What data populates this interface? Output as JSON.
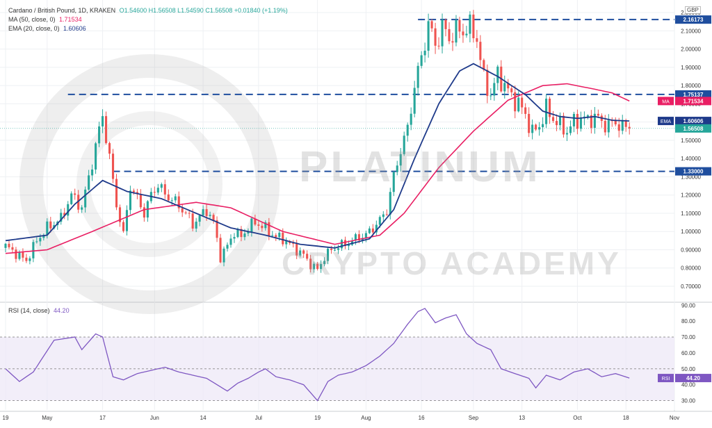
{
  "legend": {
    "symbol": "Cardano / British Pound, 1D, KRAKEN",
    "ohlc": "O1.54600  H1.56508  L1.54590  C1.56508  +0.01840 (+1.19%)",
    "ma_label": "MA (50, close, 0)",
    "ma_value": "1.71534",
    "ema_label": "EMA (20, close, 0)",
    "ema_value": "1.60606",
    "rsi_label": "RSI (14, close)",
    "rsi_value": "44.20"
  },
  "currency": "GBP",
  "watermark": {
    "line1": "PLATINUM",
    "line2": "CRYPTO ACADEMY"
  },
  "colors": {
    "up": "#26a69a",
    "down": "#ef5350",
    "ma": "#e91e63",
    "ema": "#1e3a8a",
    "rsi": "#7e57c2",
    "level": "#1f4e9e",
    "grid": "#eef0f3"
  },
  "chart_data": {
    "type": "candlestick",
    "x_tick_labels": [
      "19",
      "May",
      "17",
      "Jun",
      "14",
      "Jul",
      "19",
      "Aug",
      "16",
      "Sep",
      "13",
      "Oct",
      "18",
      "Nov"
    ],
    "x_tick_index": [
      0,
      12,
      28,
      43,
      57,
      73,
      90,
      104,
      120,
      135,
      149,
      165,
      179,
      193
    ],
    "price_axis_labels": [
      "0.70000",
      "0.80000",
      "0.90000",
      "1.00000",
      "1.10000",
      "1.20000",
      "1.30000",
      "1.40000",
      "1.50000",
      "1.60000",
      "1.70000",
      "1.80000",
      "1.90000",
      "2.00000",
      "2.10000",
      "2.20000"
    ],
    "price_ylim": [
      0.62,
      2.25
    ],
    "levels": [
      {
        "label": "2.16173",
        "value": 2.16173,
        "start_index": 119
      },
      {
        "label": "1.75137",
        "value": 1.75137,
        "start_index": 18
      },
      {
        "label": "1.33000",
        "value": 1.33,
        "start_index": 31
      }
    ],
    "last_price": {
      "label": "1.56508",
      "value": 1.56508
    },
    "ma_badge": {
      "text": "MA",
      "label": "1.71534",
      "value": 1.71534
    },
    "ema_badge": {
      "text": "EMA",
      "label": "1.60606",
      "value": 1.60606
    },
    "close_keypoints": [
      [
        0,
        0.92
      ],
      [
        3,
        0.88
      ],
      [
        6,
        0.84
      ],
      [
        9,
        0.95
      ],
      [
        12,
        1.02
      ],
      [
        16,
        1.07
      ],
      [
        19,
        1.2
      ],
      [
        22,
        1.13
      ],
      [
        25,
        1.38
      ],
      [
        28,
        1.64
      ],
      [
        30,
        1.4
      ],
      [
        32,
        1.15
      ],
      [
        34,
        0.98
      ],
      [
        36,
        1.25
      ],
      [
        38,
        1.18
      ],
      [
        40,
        1.1
      ],
      [
        42,
        1.2
      ],
      [
        44,
        1.26
      ],
      [
        46,
        1.2
      ],
      [
        48,
        1.18
      ],
      [
        50,
        1.14
      ],
      [
        52,
        1.1
      ],
      [
        54,
        1.04
      ],
      [
        56,
        1.08
      ],
      [
        58,
        1.12
      ],
      [
        60,
        1.05
      ],
      [
        62,
        0.86
      ],
      [
        64,
        0.92
      ],
      [
        66,
        1.0
      ],
      [
        68,
        0.97
      ],
      [
        70,
        1.02
      ],
      [
        72,
        1.05
      ],
      [
        74,
        1.03
      ],
      [
        76,
        1.0
      ],
      [
        78,
        0.97
      ],
      [
        80,
        0.96
      ],
      [
        82,
        0.93
      ],
      [
        84,
        0.9
      ],
      [
        86,
        0.87
      ],
      [
        88,
        0.82
      ],
      [
        90,
        0.79
      ],
      [
        92,
        0.86
      ],
      [
        94,
        0.9
      ],
      [
        96,
        0.92
      ],
      [
        98,
        0.93
      ],
      [
        100,
        0.95
      ],
      [
        102,
        0.97
      ],
      [
        104,
        0.98
      ],
      [
        106,
        1.02
      ],
      [
        108,
        1.06
      ],
      [
        110,
        1.12
      ],
      [
        112,
        1.3
      ],
      [
        114,
        1.45
      ],
      [
        116,
        1.56
      ],
      [
        118,
        1.8
      ],
      [
        120,
        1.95
      ],
      [
        122,
        2.14
      ],
      [
        124,
        2.02
      ],
      [
        126,
        2.12
      ],
      [
        128,
        2.06
      ],
      [
        130,
        2.1
      ],
      [
        132,
        2.1
      ],
      [
        134,
        2.12
      ],
      [
        136,
        2.06
      ],
      [
        138,
        1.83
      ],
      [
        140,
        1.75
      ],
      [
        142,
        1.86
      ],
      [
        144,
        1.8
      ],
      [
        146,
        1.74
      ],
      [
        148,
        1.7
      ],
      [
        150,
        1.64
      ],
      [
        152,
        1.54
      ],
      [
        154,
        1.58
      ],
      [
        156,
        1.67
      ],
      [
        158,
        1.62
      ],
      [
        160,
        1.58
      ],
      [
        162,
        1.55
      ],
      [
        164,
        1.6
      ],
      [
        166,
        1.62
      ],
      [
        168,
        1.61
      ],
      [
        170,
        1.63
      ],
      [
        172,
        1.6
      ],
      [
        174,
        1.58
      ],
      [
        176,
        1.6
      ],
      [
        178,
        1.57
      ],
      [
        180,
        1.56508
      ]
    ],
    "ma_keypoints": [
      [
        0,
        0.88
      ],
      [
        12,
        0.9
      ],
      [
        25,
        1.0
      ],
      [
        40,
        1.12
      ],
      [
        55,
        1.16
      ],
      [
        65,
        1.13
      ],
      [
        80,
        1.0
      ],
      [
        95,
        0.93
      ],
      [
        108,
        0.98
      ],
      [
        115,
        1.1
      ],
      [
        125,
        1.35
      ],
      [
        135,
        1.55
      ],
      [
        145,
        1.72
      ],
      [
        155,
        1.8
      ],
      [
        162,
        1.81
      ],
      [
        170,
        1.78
      ],
      [
        175,
        1.76
      ],
      [
        180,
        1.71534
      ]
    ],
    "ema_keypoints": [
      [
        0,
        0.95
      ],
      [
        12,
        0.98
      ],
      [
        20,
        1.15
      ],
      [
        28,
        1.28
      ],
      [
        35,
        1.22
      ],
      [
        45,
        1.18
      ],
      [
        55,
        1.1
      ],
      [
        65,
        1.02
      ],
      [
        75,
        0.98
      ],
      [
        85,
        0.93
      ],
      [
        95,
        0.91
      ],
      [
        105,
        0.96
      ],
      [
        112,
        1.12
      ],
      [
        118,
        1.4
      ],
      [
        125,
        1.7
      ],
      [
        131,
        1.88
      ],
      [
        135,
        1.92
      ],
      [
        142,
        1.85
      ],
      [
        150,
        1.75
      ],
      [
        155,
        1.66
      ],
      [
        160,
        1.63
      ],
      [
        165,
        1.62
      ],
      [
        170,
        1.63
      ],
      [
        175,
        1.61
      ],
      [
        180,
        1.60606
      ]
    ],
    "rsi_axis_labels": [
      "30.00",
      "40.00",
      "50.00",
      "60.00",
      "70.00",
      "80.00",
      "90.00"
    ],
    "rsi_ylim": [
      25,
      91
    ],
    "rsi_band": [
      30,
      70
    ],
    "rsi_mid": 50,
    "rsi_last": {
      "text": "RSI",
      "label": "44.20",
      "value": 44.2
    },
    "rsi_keypoints": [
      [
        0,
        50
      ],
      [
        4,
        42
      ],
      [
        8,
        48
      ],
      [
        14,
        68
      ],
      [
        20,
        70
      ],
      [
        22,
        62
      ],
      [
        26,
        72
      ],
      [
        28,
        70
      ],
      [
        31,
        45
      ],
      [
        34,
        43
      ],
      [
        38,
        47
      ],
      [
        42,
        49
      ],
      [
        46,
        51
      ],
      [
        50,
        48
      ],
      [
        54,
        46
      ],
      [
        58,
        44
      ],
      [
        61,
        40
      ],
      [
        64,
        36
      ],
      [
        67,
        41
      ],
      [
        70,
        44
      ],
      [
        73,
        48
      ],
      [
        75,
        50
      ],
      [
        78,
        45
      ],
      [
        82,
        43
      ],
      [
        86,
        40
      ],
      [
        90,
        30
      ],
      [
        93,
        42
      ],
      [
        96,
        46
      ],
      [
        100,
        48
      ],
      [
        104,
        52
      ],
      [
        108,
        58
      ],
      [
        112,
        66
      ],
      [
        116,
        78
      ],
      [
        119,
        86
      ],
      [
        121,
        88
      ],
      [
        124,
        79
      ],
      [
        127,
        82
      ],
      [
        130,
        84
      ],
      [
        133,
        72
      ],
      [
        136,
        66
      ],
      [
        140,
        62
      ],
      [
        143,
        50
      ],
      [
        147,
        47
      ],
      [
        151,
        44
      ],
      [
        153,
        38
      ],
      [
        156,
        46
      ],
      [
        160,
        43
      ],
      [
        164,
        48
      ],
      [
        168,
        50
      ],
      [
        172,
        45
      ],
      [
        176,
        47
      ],
      [
        180,
        44.2
      ]
    ]
  }
}
